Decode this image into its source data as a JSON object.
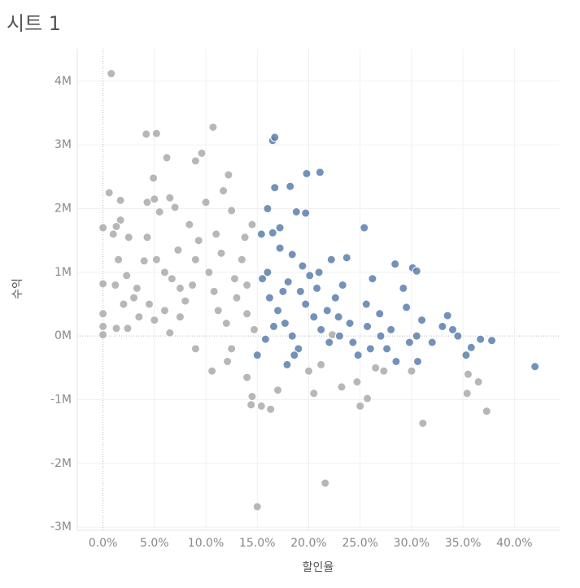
{
  "chart_data": {
    "type": "scatter",
    "title": "시트 1",
    "x_label": "할인율",
    "y_label": "수익",
    "xlim": [
      -2.5,
      44.4
    ],
    "ylim": [
      -3050000,
      4510000
    ],
    "xticks": [
      {
        "value": 0,
        "label": "0.0%"
      },
      {
        "value": 5,
        "label": "5.0%"
      },
      {
        "value": 10,
        "label": "10.0%"
      },
      {
        "value": 15,
        "label": "15.0%"
      },
      {
        "value": 20,
        "label": "20.0%"
      },
      {
        "value": 25,
        "label": "25.0%"
      },
      {
        "value": 30,
        "label": "30.0%"
      },
      {
        "value": 35,
        "label": "35.0%"
      },
      {
        "value": 40,
        "label": "40.0%"
      }
    ],
    "yticks": [
      {
        "value": 4000000,
        "label": "4M"
      },
      {
        "value": 3000000,
        "label": "3M"
      },
      {
        "value": 2000000,
        "label": "2M"
      },
      {
        "value": 1000000,
        "label": "1M"
      },
      {
        "value": 0,
        "label": "0M"
      },
      {
        "value": -1000000,
        "label": "-1M"
      },
      {
        "value": -2000000,
        "label": "-2M"
      },
      {
        "value": -3000000,
        "label": "-3M"
      }
    ],
    "grid": true,
    "series": [
      {
        "color": "#aaaaaa",
        "x": [
          0.8,
          0,
          0,
          0,
          0,
          0,
          0.6,
          1.7,
          1.7,
          1.0,
          1.3,
          2.5,
          1.5,
          1.2,
          2.3,
          3,
          3.5,
          1.3,
          2.4,
          4.2,
          5.2,
          6.2,
          4.9,
          4.3,
          5.0,
          6.5,
          7.0,
          5.5,
          4.3,
          4.0,
          5.2,
          6.0,
          6.7,
          7.5,
          8.0,
          4.5,
          5.0,
          6.0,
          6.5,
          7.5,
          8.7,
          9.0,
          9.3,
          8.4,
          9.0,
          9.6,
          10.7,
          10.0,
          11.7,
          12.2,
          12.5,
          11.0,
          11.5,
          10.3,
          10.8,
          11.2,
          12.0,
          12.8,
          13.5,
          13.8,
          14.5,
          13.0,
          14.0,
          14.7,
          12.5,
          10.6,
          9.0,
          12.1,
          14.0,
          14.5,
          14.4,
          15.4,
          16.3,
          15.0,
          14.0,
          7.3,
          3.3,
          2.0,
          20.0,
          21.2,
          21.6,
          20.5,
          23.2,
          24.7,
          25.0,
          25.7,
          26.5,
          27.3,
          30.0,
          31.1,
          35.5,
          35.4,
          36.5,
          37.3,
          17.0,
          22.3
        ],
        "values": [
          4120000,
          1700000,
          820000,
          350000,
          150000,
          20000,
          2250000,
          2130000,
          1820000,
          1600000,
          1720000,
          1550000,
          1200000,
          800000,
          950000,
          600000,
          300000,
          120000,
          120000,
          3170000,
          3180000,
          2800000,
          2480000,
          2100000,
          2150000,
          2170000,
          2020000,
          1950000,
          1550000,
          1180000,
          1200000,
          1000000,
          900000,
          750000,
          550000,
          500000,
          250000,
          400000,
          50000,
          300000,
          800000,
          1200000,
          1500000,
          1750000,
          2750000,
          2870000,
          3280000,
          2100000,
          2280000,
          2530000,
          1970000,
          1600000,
          1300000,
          1000000,
          700000,
          400000,
          200000,
          900000,
          1200000,
          1550000,
          1750000,
          600000,
          350000,
          100000,
          -200000,
          -550000,
          -200000,
          -400000,
          -650000,
          -950000,
          -1080000,
          -1100000,
          -1150000,
          -2680000,
          800000,
          1350000,
          750000,
          500000,
          -550000,
          -450000,
          -2310000,
          -900000,
          -800000,
          -720000,
          -1100000,
          -980000,
          -500000,
          -550000,
          -550000,
          -1370000,
          -600000,
          -900000,
          -720000,
          -1180000,
          -850000,
          20000
        ]
      },
      {
        "color": "#5b7fad",
        "x": [
          16.5,
          16.7,
          18.2,
          16.7,
          19.8,
          21.1,
          16.0,
          17.2,
          18.8,
          19.7,
          15.4,
          16.5,
          17.2,
          18.4,
          19.4,
          20.1,
          21.0,
          22.2,
          23.7,
          25.4,
          15.5,
          16.2,
          17.0,
          17.7,
          18.4,
          19.0,
          19.7,
          20.5,
          21.2,
          22.0,
          22.6,
          23.3,
          24.0,
          24.8,
          25.6,
          26.2,
          26.9,
          27.6,
          28.4,
          29.2,
          30.1,
          30.5,
          29.5,
          30.5,
          31.0,
          28.5,
          29.8,
          30.6,
          33.5,
          33.0,
          34.0,
          34.5,
          35.3,
          35.8,
          36.7,
          37.8,
          42.0,
          15.0,
          15.8,
          16.6,
          17.9,
          18.6,
          23.0,
          24.3,
          25.7,
          27.0,
          19.2,
          20.8,
          22.9,
          17.5,
          18.0,
          16.0,
          21.8,
          26.0,
          28.0,
          32.0
        ],
        "values": [
          3070000,
          3120000,
          2350000,
          2330000,
          2550000,
          2570000,
          2000000,
          1700000,
          1950000,
          1930000,
          1600000,
          1620000,
          1380000,
          1280000,
          1100000,
          950000,
          1000000,
          1200000,
          1230000,
          1700000,
          900000,
          600000,
          400000,
          200000,
          0,
          -200000,
          500000,
          300000,
          100000,
          -100000,
          600000,
          800000,
          200000,
          -300000,
          500000,
          900000,
          350000,
          -200000,
          1130000,
          750000,
          1070000,
          1020000,
          450000,
          0,
          250000,
          -400000,
          -100000,
          -400000,
          320000,
          150000,
          100000,
          0,
          -300000,
          -180000,
          -50000,
          -70000,
          -480000,
          -300000,
          -50000,
          150000,
          -450000,
          -300000,
          0,
          -100000,
          150000,
          0,
          700000,
          750000,
          300000,
          700000,
          850000,
          1000000,
          400000,
          -200000,
          100000,
          -100000
        ]
      }
    ]
  }
}
